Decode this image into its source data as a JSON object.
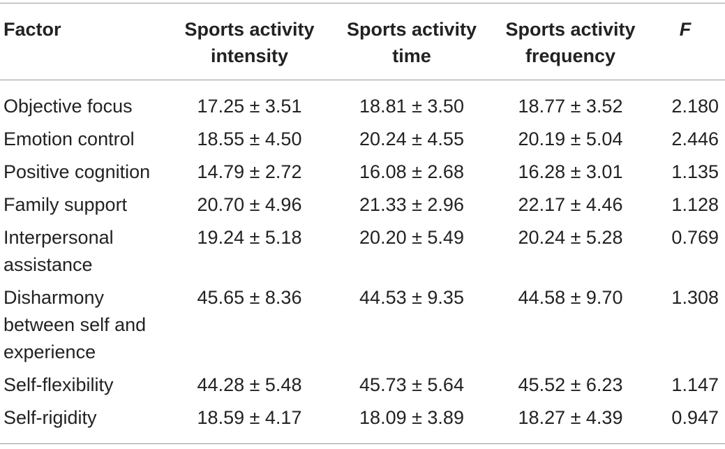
{
  "headers": {
    "factor": "Factor",
    "intensity": [
      "Sports activity",
      "intensity"
    ],
    "time": [
      "Sports activity",
      "time"
    ],
    "frequency": [
      "Sports activity",
      "frequency"
    ],
    "f": "F"
  },
  "rows": [
    {
      "factor": [
        "Objective focus"
      ],
      "intensity": "17.25 ± 3.51",
      "time": "18.81 ± 3.50",
      "frequency": "18.77 ± 3.52",
      "f": "2.180"
    },
    {
      "factor": [
        "Emotion control"
      ],
      "intensity": "18.55 ± 4.50",
      "time": "20.24 ± 4.55",
      "frequency": "20.19 ± 5.04",
      "f": "2.446"
    },
    {
      "factor": [
        "Positive cognition"
      ],
      "intensity": "14.79 ± 2.72",
      "time": "16.08 ± 2.68",
      "frequency": "16.28 ± 3.01",
      "f": "1.135"
    },
    {
      "factor": [
        "Family support"
      ],
      "intensity": "20.70 ± 4.96",
      "time": "21.33 ± 2.96",
      "frequency": "22.17 ± 4.46",
      "f": "1.128"
    },
    {
      "factor": [
        "Interpersonal",
        "assistance"
      ],
      "intensity": "19.24 ± 5.18",
      "time": "20.20 ± 5.49",
      "frequency": "20.24 ± 5.28",
      "f": "0.769"
    },
    {
      "factor": [
        "Disharmony",
        "between self and",
        "experience"
      ],
      "intensity": "45.65 ± 8.36",
      "time": "44.53 ± 9.35",
      "frequency": "44.58 ± 9.70",
      "f": "1.308"
    },
    {
      "factor": [
        "Self-flexibility"
      ],
      "intensity": "44.28 ± 5.48",
      "time": "45.73 ± 5.64",
      "frequency": "45.52 ± 6.23",
      "f": "1.147"
    },
    {
      "factor": [
        "Self-rigidity"
      ],
      "intensity": "18.59 ± 4.17",
      "time": "18.09 ± 3.89",
      "frequency": "18.27 ± 4.39",
      "f": "0.947"
    }
  ]
}
